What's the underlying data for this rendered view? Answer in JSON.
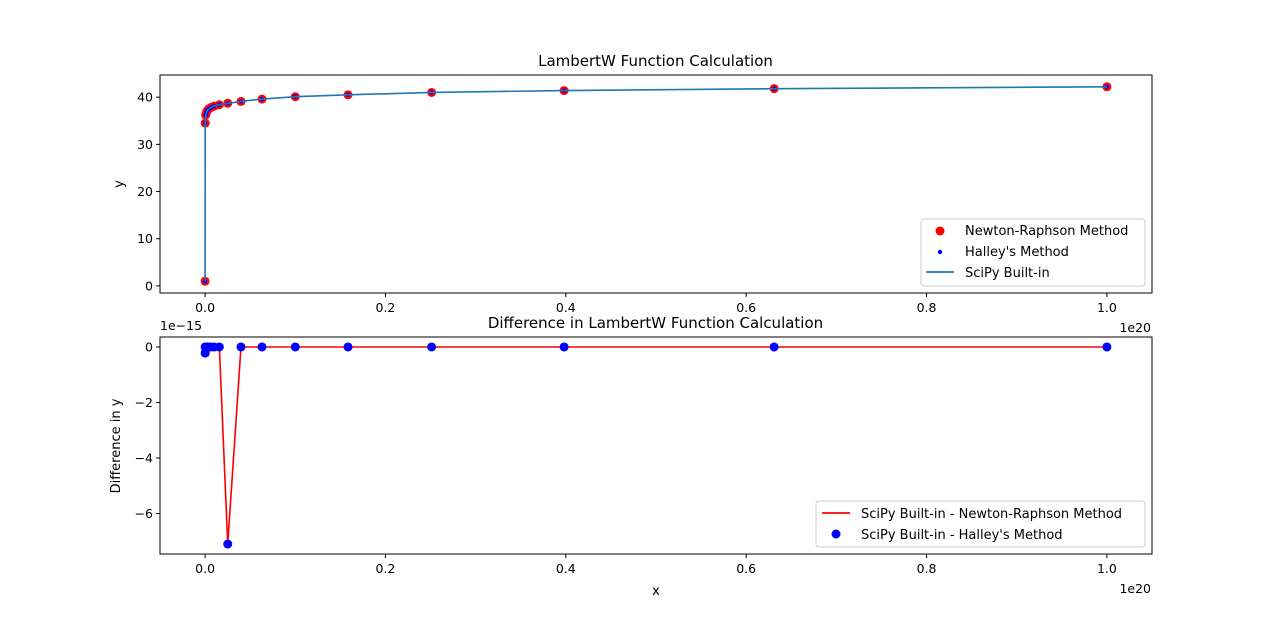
{
  "colors": {
    "newton": "#ff0000",
    "halley": "#0000ff",
    "scipy": "#1f77b4",
    "diff_newton": "#ff0000",
    "diff_halley": "#0000ff"
  },
  "chart_data": [
    {
      "type": "scatter",
      "title": "LambertW Function Calculation",
      "xlabel": "",
      "ylabel": "y",
      "x_offset_label": "1e20",
      "xlim": [
        -0.05,
        1.05
      ],
      "ylim": [
        -1.5,
        44.7
      ],
      "xticks": [
        0.0,
        0.2,
        0.4,
        0.6,
        0.8,
        1.0
      ],
      "xtick_labels": [
        "0.0",
        "0.2",
        "0.4",
        "0.6",
        "0.8",
        "1.0"
      ],
      "yticks": [
        0,
        10,
        20,
        30,
        40
      ],
      "ytick_labels": [
        "0",
        "10",
        "20",
        "30",
        "40"
      ],
      "legend_position": "lower-right",
      "x": [
        8e-06,
        0.00013,
        0.0006,
        0.0016,
        0.0025,
        0.004,
        0.0063,
        0.01,
        0.0158,
        0.0251,
        0.0398,
        0.0631,
        0.1,
        0.1585,
        0.2512,
        0.3981,
        0.631,
        1.0
      ],
      "series": [
        {
          "name": "Newton-Raphson Method",
          "kind": "scatter",
          "values": [
            1.0,
            34.5,
            36.2,
            36.8,
            37.2,
            37.5,
            37.8,
            38.1,
            38.4,
            38.7,
            39.1,
            39.6,
            40.1,
            40.5,
            41.0,
            41.4,
            41.8,
            42.2
          ]
        },
        {
          "name": "Halley's Method",
          "kind": "scatter",
          "values": [
            1.0,
            34.5,
            36.2,
            36.8,
            37.2,
            37.5,
            37.8,
            38.1,
            38.4,
            38.7,
            39.1,
            39.6,
            40.1,
            40.5,
            41.0,
            41.4,
            41.8,
            42.2
          ]
        },
        {
          "name": "SciPy Built-in",
          "kind": "line",
          "values": [
            1.0,
            34.5,
            36.2,
            36.8,
            37.2,
            37.5,
            37.8,
            38.1,
            38.4,
            38.7,
            39.1,
            39.6,
            40.1,
            40.5,
            41.0,
            41.4,
            41.8,
            42.2
          ]
        }
      ]
    },
    {
      "type": "line",
      "title": "Difference in LambertW Function Calculation",
      "xlabel": "x",
      "ylabel": "Difference in y",
      "x_offset_label": "1e20",
      "y_offset_label": "1e−15",
      "xlim": [
        -0.05,
        1.05
      ],
      "ylim": [
        -7.46,
        0.36
      ],
      "xticks": [
        0.0,
        0.2,
        0.4,
        0.6,
        0.8,
        1.0
      ],
      "xtick_labels": [
        "0.0",
        "0.2",
        "0.4",
        "0.6",
        "0.8",
        "1.0"
      ],
      "yticks": [
        -6,
        -4,
        -2,
        0
      ],
      "ytick_labels": [
        "−6",
        "−4",
        "−2",
        "0"
      ],
      "legend_position": "lower-right",
      "x": [
        8e-06,
        0.00013,
        0.0006,
        0.0016,
        0.0025,
        0.004,
        0.0063,
        0.01,
        0.0158,
        0.0251,
        0.0398,
        0.0631,
        0.1,
        0.1585,
        0.2512,
        0.3981,
        0.631,
        1.0
      ],
      "series": [
        {
          "name": "SciPy Built-in - Newton-Raphson Method",
          "kind": "line",
          "values": [
            0,
            -0.22,
            0,
            0,
            0,
            0,
            0,
            0,
            0,
            -7.1,
            0,
            0,
            0,
            0,
            0,
            0,
            0,
            0
          ]
        },
        {
          "name": "SciPy Built-in - Halley's Method",
          "kind": "scatter",
          "values": [
            0,
            -0.22,
            0,
            0,
            0,
            0,
            0,
            0,
            0,
            -7.1,
            0,
            0,
            0,
            0,
            0,
            0,
            0,
            0
          ]
        }
      ]
    }
  ]
}
